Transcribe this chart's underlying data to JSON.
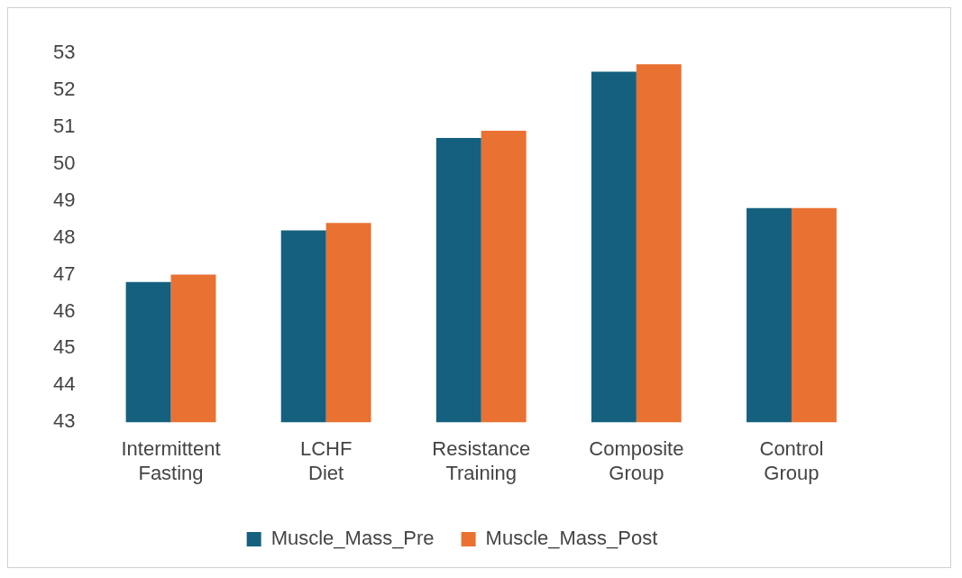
{
  "chart_data": {
    "type": "bar",
    "categories": [
      "Intermittent Fasting",
      "LCHF Diet",
      "Resistance Training",
      "Composite Group",
      "Control Group"
    ],
    "series": [
      {
        "name": "Muscle_Mass_Pre",
        "color": "#15607f",
        "values": [
          46.8,
          48.2,
          50.7,
          52.5,
          48.8
        ]
      },
      {
        "name": "Muscle_Mass_Post",
        "color": "#e97132",
        "values": [
          47.0,
          48.4,
          50.9,
          52.7,
          48.8
        ]
      }
    ],
    "ylim": [
      43,
      53
    ],
    "yticks": [
      43,
      44,
      45,
      46,
      47,
      48,
      49,
      50,
      51,
      52,
      53
    ],
    "grid": false,
    "legend": "bottom"
  }
}
